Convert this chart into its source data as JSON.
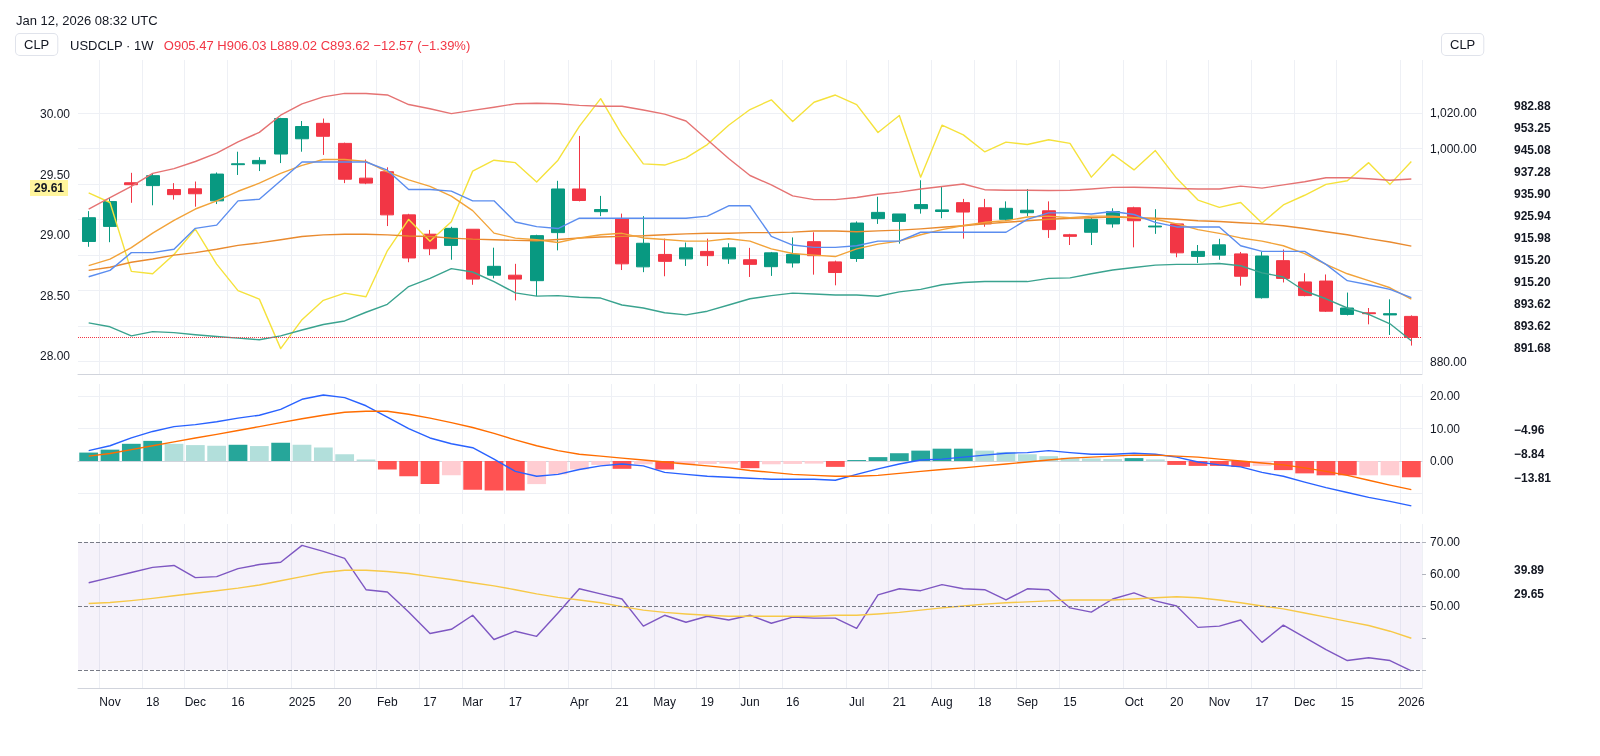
{
  "chart_data": [
    {
      "type": "candlestick",
      "title": "USDCLP · 1W",
      "subtitle": "O905.47 H906.03 L889.02 C893.62 −12.57 (−1.39%)",
      "ylabel": "CLP",
      "y2label": "CLP",
      "categories": [
        null,
        null,
        null,
        null,
        null,
        null,
        null,
        null,
        null,
        null,
        null,
        null,
        null,
        null,
        null,
        null,
        null,
        null,
        null,
        null,
        null,
        null,
        null,
        null,
        null,
        null,
        null,
        null,
        null,
        null,
        null,
        null,
        null,
        null,
        null,
        null,
        null,
        null,
        null,
        null,
        null,
        null,
        null,
        null,
        null,
        null,
        null,
        null,
        null,
        null,
        null,
        null,
        null,
        null,
        null,
        null,
        null,
        null,
        null,
        null,
        null,
        null,
        null
      ],
      "ohlc": [
        [
          947.7,
          964.8,
          944.7,
          961.1
        ],
        [
          956.2,
          972.4,
          947.3,
          970.2
        ],
        [
          980.8,
          986.4,
          969.5,
          979.7
        ],
        [
          979.2,
          986.1,
          968.1,
          984.8
        ],
        [
          977.0,
          980.6,
          971.3,
          974.1
        ],
        [
          977.4,
          981.5,
          967.3,
          974.6
        ],
        [
          970.6,
          986.6,
          968.8,
          985.7
        ],
        [
          991.0,
          998.3,
          985.2,
          991.5
        ],
        [
          991.5,
          995.2,
          987.4,
          993.4
        ],
        [
          997.0,
          1017.4,
          991.9,
          1017.0
        ],
        [
          1005.6,
          1015.6,
          998.3,
          1012.5
        ],
        [
          1014.3,
          1017.0,
          996.5,
          1007.0
        ],
        [
          1003.0,
          1003.4,
          980.6,
          982.8
        ],
        [
          983.4,
          993.9,
          980.0,
          980.6
        ],
        [
          987.0,
          989.5,
          956.4,
          962.7
        ],
        [
          962.7,
          963.3,
          936.0,
          938.4
        ],
        [
          951.8,
          954.2,
          940.0,
          943.6
        ],
        [
          945.5,
          956.0,
          937.4,
          955.1
        ],
        [
          954.6,
          954.6,
          923.3,
          926.5
        ],
        [
          928.7,
          944.2,
          926.9,
          933.7
        ],
        [
          928.7,
          935.1,
          914.5,
          926.5
        ],
        [
          925.6,
          951.5,
          916.9,
          951.0
        ],
        [
          952.7,
          981.9,
          942.7,
          977.3
        ],
        [
          977.3,
          1007.2,
          970.3,
          970.8
        ],
        [
          964.5,
          973.4,
          962.0,
          965.7
        ],
        [
          960.6,
          963.4,
          931.6,
          935.1
        ],
        [
          933.4,
          962.0,
          930.4,
          946.7
        ],
        [
          940.4,
          949.3,
          928.1,
          936.5
        ],
        [
          937.9,
          947.1,
          933.9,
          944.1
        ],
        [
          942.1,
          949.3,
          933.9,
          939.7
        ],
        [
          937.9,
          946.7,
          935.1,
          944.1
        ],
        [
          937.4,
          944.1,
          927.7,
          934.8
        ],
        [
          933.5,
          941.8,
          928.3,
          941.3
        ],
        [
          935.6,
          950.0,
          933.0,
          940.4
        ],
        [
          947.6,
          952.9,
          929.0,
          939.7
        ],
        [
          936.2,
          936.9,
          923.0,
          930.2
        ],
        [
          938.1,
          959.0,
          936.2,
          958.1
        ],
        [
          960.6,
          972.9,
          957.6,
          964.1
        ],
        [
          959.0,
          963.2,
          946.5,
          963.2
        ],
        [
          966.2,
          982.2,
          963.4,
          968.5
        ],
        [
          964.6,
          978.7,
          960.8,
          965.5
        ],
        [
          969.6,
          971.7,
          949.3,
          964.3
        ],
        [
          966.7,
          971.7,
          956.0,
          957.6
        ],
        [
          960.2,
          970.3,
          959.4,
          966.4
        ],
        [
          963.9,
          977.3,
          962.0,
          965.3
        ],
        [
          965.0,
          970.3,
          949.7,
          954.4
        ],
        [
          951.5,
          952.0,
          945.7,
          950.6
        ],
        [
          952.9,
          961.1,
          945.7,
          960.2
        ],
        [
          957.6,
          966.4,
          955.5,
          964.6
        ],
        [
          966.7,
          967.3,
          944.4,
          959.4
        ],
        [
          955.9,
          965.9,
          952.0,
          956.4
        ],
        [
          957.6,
          957.6,
          938.8,
          941.3
        ],
        [
          939.3,
          945.7,
          935.6,
          942.1
        ],
        [
          940.0,
          949.2,
          937.4,
          945.8
        ],
        [
          940.7,
          941.8,
          922.8,
          928.1
        ],
        [
          916.0,
          941.8,
          915.5,
          939.5
        ],
        [
          936.9,
          943.2,
          924.6,
          926.9
        ],
        [
          924.9,
          929.8,
          916.8,
          917.2
        ],
        [
          925.4,
          929.1,
          908.0,
          908.4
        ],
        [
          906.6,
          918.9,
          906.0,
          910.2
        ],
        [
          907.5,
          910.2,
          901.0,
          907.0
        ],
        [
          906.3,
          915.1,
          895.0,
          907.0
        ],
        [
          905.47,
          906.03,
          889.02,
          893.62
        ]
      ],
      "series": [
        {
          "type": "line",
          "axis": "y2",
          "color": "#f5e23c",
          "values": [
            29.35,
            29.27,
            28.7,
            28.68,
            28.84,
            29.05,
            28.76,
            28.54,
            28.47,
            28.06,
            28.3,
            28.46,
            28.52,
            28.49,
            28.87,
            29.13,
            28.95,
            29.11,
            29.53,
            29.62,
            29.6,
            29.44,
            29.62,
            29.9,
            30.13,
            29.83,
            29.59,
            29.58,
            29.64,
            29.75,
            29.91,
            30.04,
            30.12,
            29.94,
            30.1,
            30.16,
            30.08,
            29.85,
            29.99,
            29.48,
            29.91,
            29.83,
            29.69,
            29.77,
            29.75,
            29.79,
            29.76,
            29.48,
            29.67,
            29.54,
            29.7,
            29.47,
            29.29,
            29.23,
            29.27,
            29.1,
            29.25,
            29.33,
            29.42,
            29.45,
            29.6,
            29.42,
            29.61
          ]
        },
        {
          "type": "line",
          "color": "#e57373",
          "values": [
            966.0,
            972.4,
            978.8,
            986.1,
            988.8,
            992.8,
            997.5,
            1003.8,
            1009.2,
            1018.9,
            1025.3,
            1029.2,
            1031.2,
            1031.1,
            1030.3,
            1024.9,
            1022.5,
            1019.8,
            1021.6,
            1023.4,
            1025.3,
            1025.6,
            1025.3,
            1024.4,
            1023.9,
            1023.9,
            1021.8,
            1019.5,
            1015.6,
            1005.1,
            994.5,
            984.9,
            979.6,
            973.4,
            971.3,
            971.3,
            972.5,
            974.3,
            975.5,
            977.3,
            978.7,
            980.1,
            976.9,
            976.6,
            976.6,
            976.4,
            976.6,
            977.3,
            978.2,
            978.3,
            978.0,
            977.6,
            977.3,
            977.3,
            978.9,
            977.8,
            979.6,
            981.4,
            983.6,
            983.6,
            983.1,
            982.2,
            982.9
          ]
        },
        {
          "type": "line",
          "color": "#3aa38f",
          "values": [
            901.8,
            899.6,
            894.5,
            896.9,
            896.3,
            895.1,
            894.1,
            893.2,
            892.3,
            894.5,
            897.8,
            900.9,
            902.9,
            907.8,
            912.3,
            922.3,
            926.9,
            932.4,
            930.5,
            925.1,
            918.7,
            916.9,
            917.2,
            916.3,
            915.8,
            911.9,
            910.2,
            907.5,
            906.3,
            908.4,
            911.9,
            915.4,
            917.2,
            918.6,
            918.1,
            917.5,
            917.5,
            916.8,
            919.3,
            920.7,
            923.3,
            924.6,
            925.1,
            925.1,
            925.1,
            926.9,
            927.2,
            929.5,
            931.6,
            933.0,
            934.4,
            934.8,
            934.8,
            935.3,
            934.0,
            930.0,
            927.7,
            919.8,
            915.4,
            910.2,
            906.6,
            901.3,
            891.7
          ]
        },
        {
          "type": "line",
          "color": "#e98a2e",
          "values": [
            931.4,
            933.2,
            936.0,
            937.8,
            940.0,
            941.4,
            943.3,
            945.5,
            946.9,
            948.7,
            950.5,
            951.4,
            951.8,
            951.8,
            951.4,
            950.8,
            950.5,
            949.6,
            949.0,
            948.7,
            948.3,
            948.1,
            948.8,
            949.7,
            950.2,
            950.6,
            950.9,
            951.5,
            952.0,
            952.3,
            952.3,
            952.7,
            952.7,
            953.0,
            953.6,
            953.6,
            953.2,
            953.7,
            954.1,
            954.8,
            955.7,
            956.6,
            957.6,
            958.5,
            959.4,
            960.2,
            960.8,
            961.1,
            961.5,
            961.1,
            960.8,
            960.2,
            959.4,
            959.0,
            958.3,
            957.6,
            956.6,
            955.0,
            953.2,
            951.5,
            949.3,
            947.4,
            945.1
          ]
        },
        {
          "type": "line",
          "color": "#f2a33a",
          "values": [
            934.1,
            937.8,
            944.2,
            952.4,
            959.6,
            966.0,
            970.6,
            976.0,
            980.6,
            986.1,
            990.6,
            993.9,
            993.9,
            992.8,
            987.0,
            982.4,
            978.8,
            973.3,
            965.1,
            952.4,
            949.6,
            948.7,
            947.1,
            949.7,
            951.5,
            952.3,
            949.7,
            948.8,
            947.9,
            947.9,
            949.2,
            947.9,
            943.5,
            940.9,
            940.0,
            939.2,
            943.5,
            946.2,
            947.9,
            951.5,
            954.4,
            956.7,
            958.5,
            959.4,
            961.5,
            962.0,
            961.1,
            962.0,
            962.0,
            961.1,
            960.2,
            957.6,
            954.4,
            952.3,
            949.7,
            947.9,
            945.3,
            940.9,
            934.8,
            929.5,
            925.6,
            921.6,
            915.2
          ]
        },
        {
          "type": "line",
          "color": "#5b8def",
          "values": [
            927.8,
            931.4,
            941.4,
            941.4,
            943.3,
            955.1,
            956.9,
            970.6,
            971.5,
            981.9,
            992.5,
            992.5,
            992.5,
            992.5,
            987.9,
            977.0,
            977.0,
            976.1,
            970.6,
            970.6,
            958.7,
            956.1,
            955.0,
            960.8,
            960.8,
            960.8,
            960.8,
            960.8,
            960.8,
            962.0,
            967.8,
            967.8,
            950.6,
            945.7,
            944.4,
            944.4,
            945.3,
            947.9,
            947.9,
            952.9,
            952.9,
            952.9,
            952.9,
            952.9,
            960.2,
            963.8,
            963.8,
            963.2,
            964.6,
            962.9,
            958.5,
            955.9,
            955.9,
            955.9,
            945.3,
            942.1,
            942.1,
            942.1,
            934.8,
            925.6,
            923.3,
            920.7,
            916.0
          ]
        }
      ],
      "ylim": [
        873,
        1050
      ],
      "yticks": [
        {
          "value": 1020,
          "label": "1,020.00"
        },
        {
          "value": 1000,
          "label": "1,000.00"
        },
        {
          "value": 980,
          "label": null
        },
        {
          "value": 960,
          "label": null
        },
        {
          "value": 940,
          "label": null
        },
        {
          "value": 920,
          "label": null
        },
        {
          "value": 900,
          "label": null
        },
        {
          "value": 880,
          "label": "880.00"
        }
      ],
      "y2lim": [
        27.85,
        30.45
      ],
      "y2ticks": [
        {
          "value": 28,
          "label": "28.00"
        },
        {
          "value": 28.5,
          "label": "28.50"
        },
        {
          "value": 29,
          "label": "29.00"
        },
        {
          "value": 29.5,
          "label": "29.50"
        },
        {
          "value": 30,
          "label": "30.00"
        }
      ],
      "ref_lines": [
        {
          "axis": "y",
          "value": 893.62,
          "color": "#f23645",
          "line_style": "dotted"
        }
      ],
      "annotations": [
        "Jan 12, 2026 08:32 UTC",
        "29.61",
        "982.88",
        "953.25",
        "945.08",
        "937.28",
        "935.90",
        "925.94",
        "915.98",
        "915.20",
        "915.20",
        "893.62",
        "893.62",
        "891.68"
      ],
      "grid": true,
      "tick_labels": "y",
      "marker": "none",
      "line_style": "solid"
    },
    {
      "type": "bar",
      "categories": [
        null,
        null,
        null,
        null,
        null,
        null,
        null,
        null,
        null,
        null,
        null,
        null,
        null,
        null,
        null,
        null,
        null,
        null,
        null,
        null,
        null,
        null,
        null,
        null,
        null,
        null,
        null,
        null,
        null,
        null,
        null,
        null,
        null,
        null,
        null,
        null,
        null,
        null,
        null,
        null,
        null,
        null,
        null,
        null,
        null,
        null,
        null,
        null,
        null,
        null,
        null,
        null,
        null,
        null,
        null,
        null,
        null,
        null,
        null,
        null,
        null,
        null,
        null
      ],
      "series": [
        {
          "values": [
            2.6,
            3.5,
            5.3,
            6.2,
            5.3,
            4.9,
            4.7,
            5.0,
            4.6,
            5.6,
            5.0,
            4.2,
            2.1,
            0.5,
            -2.6,
            -4.7,
            -7.1,
            -4.4,
            -8.8,
            -9.1,
            -9.1,
            -7.1,
            -4.1,
            -2.6,
            -1.2,
            -2.4,
            -1.0,
            -2.6,
            -1.0,
            -0.9,
            -0.8,
            -2.2,
            -1.0,
            -0.9,
            -0.8,
            -1.8,
            0.3,
            1.2,
            2.4,
            3.2,
            3.8,
            3.8,
            3.2,
            2.8,
            2.1,
            1.5,
            1.0,
            0.8,
            0.6,
            0.9,
            0.5,
            -1.2,
            -1.5,
            -1.5,
            -1.8,
            -1.5,
            -2.8,
            -3.8,
            -4.4,
            -4.4,
            -4.4,
            -4.4,
            -5.0
          ],
          "colors": [
            "#26a69a",
            "#26a69a",
            "#26a69a",
            "#26a69a",
            "#b2dfdb",
            "#b2dfdb",
            "#b2dfdb",
            "#26a69a",
            "#b2dfdb",
            "#26a69a",
            "#b2dfdb",
            "#b2dfdb",
            "#b2dfdb",
            "#b2dfdb",
            "#ff5252",
            "#ff5252",
            "#ff5252",
            "#ffcdd2",
            "#ff5252",
            "#ff5252",
            "#ff5252",
            "#ffcdd2",
            "#ffcdd2",
            "#ffcdd2",
            "#ffcdd2",
            "#ff5252",
            "#ffcdd2",
            "#ff5252",
            "#ffcdd2",
            "#ffcdd2",
            "#ffcdd2",
            "#ff5252",
            "#ffcdd2",
            "#ffcdd2",
            "#ffcdd2",
            "#ff5252",
            "#26a69a",
            "#26a69a",
            "#26a69a",
            "#26a69a",
            "#26a69a",
            "#26a69a",
            "#b2dfdb",
            "#b2dfdb",
            "#b2dfdb",
            "#b2dfdb",
            "#b2dfdb",
            "#b2dfdb",
            "#b2dfdb",
            "#26a69a",
            "#b2dfdb",
            "#ff5252",
            "#ff5252",
            "#ff5252",
            "#ff5252",
            "#ffcdd2",
            "#ff5252",
            "#ff5252",
            "#ff5252",
            "#ff5252",
            "#ffcdd2",
            "#ffcdd2",
            "#ff5252"
          ]
        },
        {
          "type": "line",
          "color": "#2962ff",
          "values": [
            3.2,
            4.7,
            7.1,
            9.1,
            10.6,
            11.2,
            12.1,
            13.2,
            14.1,
            15.9,
            19.0,
            20.3,
            19.5,
            17.0,
            13.5,
            10.0,
            7.1,
            5.3,
            4.1,
            0.6,
            -3.2,
            -4.7,
            -4.1,
            -2.6,
            -1.5,
            -0.9,
            -1.5,
            -3.5,
            -4.1,
            -4.7,
            -5.0,
            -5.3,
            -5.6,
            -5.6,
            -5.6,
            -5.9,
            -4.1,
            -2.4,
            -0.9,
            0.3,
            0.6,
            1.2,
            1.8,
            2.4,
            2.6,
            3.2,
            2.6,
            2.1,
            2.1,
            2.4,
            2.1,
            1.2,
            -0.3,
            -1.2,
            -1.8,
            -3.5,
            -4.7,
            -6.5,
            -8.2,
            -9.7,
            -11.2,
            -12.4,
            -13.8
          ]
        },
        {
          "type": "line",
          "color": "#ff6d00",
          "values": [
            1.5,
            2.3,
            3.5,
            4.7,
            5.9,
            7.1,
            8.2,
            9.4,
            10.6,
            11.8,
            13.0,
            14.1,
            15.0,
            15.3,
            15.3,
            14.4,
            13.2,
            11.8,
            10.3,
            8.5,
            6.5,
            4.7,
            3.2,
            2.1,
            1.5,
            0.9,
            0.3,
            -0.3,
            -0.9,
            -1.5,
            -2.1,
            -2.9,
            -3.5,
            -4.1,
            -4.4,
            -4.7,
            -4.7,
            -4.4,
            -3.8,
            -3.2,
            -2.6,
            -2.1,
            -1.5,
            -0.9,
            -0.3,
            0.3,
            0.9,
            1.2,
            1.5,
            1.8,
            1.8,
            1.5,
            1.2,
            0.6,
            0.0,
            -0.6,
            -1.2,
            -2.1,
            -3.2,
            -4.4,
            -5.9,
            -7.4,
            -8.8
          ]
        }
      ],
      "ylim": [
        -16.3,
        23.7
      ],
      "yticks": [
        {
          "value": 20,
          "label": "20.00"
        },
        {
          "value": 10,
          "label": "10.00"
        },
        {
          "value": 0,
          "label": "0.00"
        },
        {
          "value": -10,
          "label": null
        }
      ],
      "annotations": [
        "−4.96",
        "−8.84",
        "−13.81"
      ],
      "grid": true,
      "tick_labels": "y",
      "marker": "none",
      "line_style": "solid"
    },
    {
      "type": "line",
      "categories": [
        null,
        "Nov",
        null,
        "18",
        null,
        "Dec",
        null,
        "16",
        null,
        null,
        "2025",
        null,
        "20",
        null,
        "Feb",
        null,
        "17",
        null,
        "Mar",
        null,
        "17",
        null,
        null,
        "Apr",
        null,
        "21",
        null,
        "May",
        null,
        "19",
        null,
        "Jun",
        null,
        "16",
        null,
        null,
        "Jul",
        null,
        "21",
        null,
        "Aug",
        null,
        "18",
        null,
        "Sep",
        null,
        "15",
        null,
        null,
        "Oct",
        null,
        "20",
        null,
        "Nov",
        null,
        "17",
        null,
        "Dec",
        null,
        "15",
        null,
        null,
        "2026"
      ],
      "series": [
        {
          "color": "#7e57c2",
          "values": [
            57.3,
            58.9,
            60.5,
            62.1,
            62.7,
            58.9,
            59.2,
            61.7,
            63.0,
            63.7,
            69.0,
            67.1,
            64.9,
            55.1,
            54.4,
            48.1,
            41.4,
            42.7,
            47.1,
            39.5,
            42.1,
            40.5,
            47.8,
            55.4,
            53.8,
            52.2,
            43.7,
            47.1,
            44.9,
            46.8,
            45.6,
            47.1,
            44.6,
            46.5,
            46.2,
            46.2,
            43.0,
            53.5,
            55.4,
            54.8,
            56.7,
            55.4,
            55.1,
            51.9,
            55.4,
            55.1,
            49.4,
            48.1,
            52.2,
            54.1,
            51.6,
            50.0,
            43.3,
            43.7,
            45.6,
            38.6,
            44.0,
            40.2,
            36.3,
            32.9,
            33.8,
            32.9,
            29.7
          ]
        },
        {
          "color": "#f7c948",
          "values": [
            50.8,
            51.1,
            51.7,
            52.4,
            53.2,
            54.0,
            54.8,
            55.6,
            56.6,
            57.9,
            59.2,
            60.5,
            61.2,
            61.2,
            60.8,
            60.2,
            59.2,
            58.3,
            57.3,
            56.3,
            55.1,
            53.8,
            52.7,
            51.9,
            51.0,
            49.8,
            48.7,
            48.0,
            47.5,
            47.1,
            46.8,
            46.8,
            46.8,
            46.8,
            46.8,
            47.1,
            47.1,
            47.5,
            48.0,
            48.7,
            49.4,
            50.0,
            50.6,
            51.0,
            51.3,
            51.6,
            51.9,
            51.9,
            51.9,
            52.2,
            52.6,
            52.9,
            52.6,
            51.9,
            51.0,
            50.0,
            49.1,
            47.8,
            46.5,
            45.2,
            43.9,
            42.1,
            39.9
          ]
        }
      ],
      "ylim": [
        24.3,
        75.7
      ],
      "yticks": [
        {
          "value": 70,
          "label": "70.00"
        },
        {
          "value": 60,
          "label": "60.00"
        },
        {
          "value": 50,
          "label": "50.00"
        },
        {
          "value": 40,
          "label": null
        },
        {
          "value": 30,
          "label": null
        }
      ],
      "bands": [
        {
          "axis": "y",
          "from": 30,
          "to": 70,
          "color": "#7e57c2"
        }
      ],
      "ref_lines": [
        {
          "axis": "y",
          "value": 70,
          "color": "#787b86",
          "line_style": "dashed"
        },
        {
          "axis": "y",
          "value": 50,
          "color": "#787b86",
          "line_style": "dashed"
        },
        {
          "axis": "y",
          "value": 30,
          "color": "#787b86",
          "line_style": "dashed"
        }
      ],
      "annotations": [
        "39.89",
        "29.65"
      ],
      "grid": "x",
      "marker": "none",
      "line_style": "solid"
    }
  ]
}
